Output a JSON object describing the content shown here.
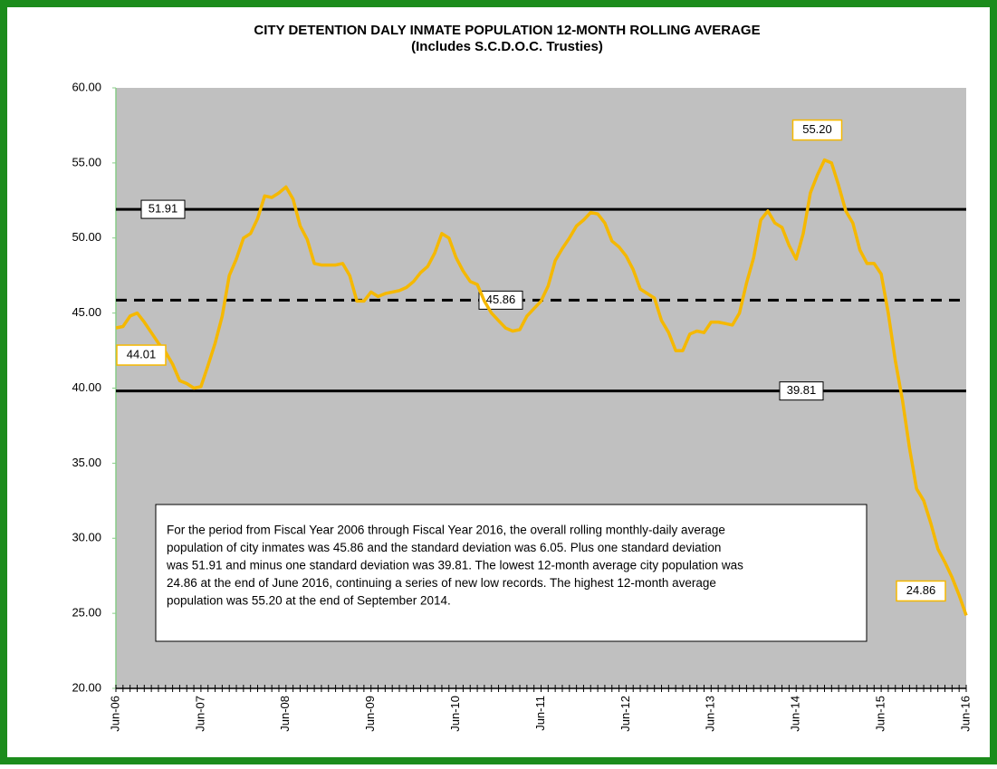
{
  "chart_data": {
    "type": "line",
    "title": [
      "CITY DETENTION DALY INMATE POPULATION 12-MONTH ROLLING  AVERAGE",
      "(Includes S.C.D.O.C. Trusties)"
    ],
    "categories": [
      "Jun-06",
      null,
      null,
      null,
      null,
      null,
      null,
      null,
      null,
      null,
      null,
      null,
      "Jun-07",
      null,
      null,
      null,
      null,
      null,
      null,
      null,
      null,
      null,
      null,
      null,
      "Jun-08",
      null,
      null,
      null,
      null,
      null,
      null,
      null,
      null,
      null,
      null,
      null,
      "Jun-09",
      null,
      null,
      null,
      null,
      null,
      null,
      null,
      null,
      null,
      null,
      null,
      "Jun-10",
      null,
      null,
      null,
      null,
      null,
      null,
      null,
      null,
      null,
      null,
      null,
      "Jun-11",
      null,
      null,
      null,
      null,
      null,
      null,
      null,
      null,
      null,
      null,
      null,
      "Jun-12",
      null,
      null,
      null,
      null,
      null,
      null,
      null,
      null,
      null,
      null,
      null,
      "Jun-13",
      null,
      null,
      null,
      null,
      null,
      null,
      null,
      null,
      null,
      null,
      null,
      "Jun-14",
      null,
      null,
      null,
      null,
      null,
      null,
      null,
      null,
      null,
      null,
      null,
      "Jun-15",
      null,
      null,
      null,
      null,
      null,
      null,
      null,
      null,
      null,
      null,
      null,
      "Jun-16"
    ],
    "values": [
      44.01,
      44.1,
      44.8,
      45.0,
      44.4,
      43.7,
      43.0,
      42.4,
      41.6,
      40.5,
      40.3,
      40.0,
      40.1,
      41.5,
      43.0,
      44.8,
      47.5,
      48.6,
      50.0,
      50.3,
      51.3,
      52.8,
      52.7,
      53.0,
      53.4,
      52.6,
      50.8,
      49.9,
      48.3,
      48.2,
      48.2,
      48.2,
      48.3,
      47.5,
      45.8,
      45.8,
      46.4,
      46.1,
      46.3,
      46.4,
      46.5,
      46.7,
      47.1,
      47.7,
      48.1,
      49.0,
      50.3,
      50.0,
      48.7,
      47.8,
      47.1,
      46.9,
      45.8,
      45.0,
      44.5,
      44.0,
      43.8,
      43.9,
      44.8,
      45.3,
      45.8,
      46.8,
      48.5,
      49.3,
      50.0,
      50.8,
      51.2,
      51.7,
      51.6,
      51.0,
      49.8,
      49.4,
      48.8,
      47.9,
      46.6,
      46.3,
      46.0,
      44.5,
      43.7,
      42.5,
      42.5,
      43.6,
      43.8,
      43.7,
      44.4,
      44.4,
      44.3,
      44.2,
      45.0,
      47.0,
      48.7,
      51.2,
      51.8,
      51.0,
      50.7,
      49.5,
      48.6,
      50.3,
      53.0,
      54.2,
      55.2,
      55.0,
      53.5,
      51.8,
      51.0,
      49.2,
      48.3,
      48.3,
      47.6,
      45.0,
      41.8,
      39.2,
      36.0,
      33.3,
      32.5,
      31.0,
      29.3,
      28.4,
      27.4,
      26.2,
      24.86
    ],
    "value_labels": [
      "44.01",
      null,
      null,
      null,
      null,
      null,
      null,
      null,
      null,
      null,
      null,
      null,
      null,
      null,
      null,
      null,
      null,
      null,
      null,
      null,
      null,
      null,
      null,
      null,
      null,
      null,
      null,
      null,
      null,
      null,
      null,
      null,
      null,
      null,
      null,
      null,
      null,
      null,
      null,
      null,
      null,
      null,
      null,
      null,
      null,
      null,
      null,
      null,
      null,
      null,
      null,
      null,
      null,
      null,
      null,
      null,
      null,
      null,
      null,
      null,
      null,
      null,
      null,
      null,
      null,
      null,
      null,
      null,
      null,
      null,
      null,
      null,
      null,
      null,
      null,
      null,
      null,
      null,
      null,
      null,
      null,
      null,
      null,
      null,
      null,
      null,
      null,
      null,
      null,
      null,
      null,
      null,
      null,
      null,
      null,
      null,
      null,
      null,
      null,
      null,
      "55.20",
      null,
      null,
      null,
      null,
      null,
      null,
      null,
      null,
      null,
      null,
      null,
      null,
      null,
      null,
      null,
      null,
      null,
      null,
      null,
      "24.86"
    ],
    "color": "#f5b800",
    "reference_lines": [
      {
        "value": 51.91,
        "style": "solid"
      },
      {
        "value": 45.86,
        "style": "dashed"
      },
      {
        "value": 39.81,
        "style": "solid"
      }
    ],
    "ylim": [
      20,
      60
    ],
    "yticks": [
      {
        "value": 20,
        "label": "20.00"
      },
      {
        "value": 25,
        "label": "25.00"
      },
      {
        "value": 30,
        "label": "30.00"
      },
      {
        "value": 35,
        "label": "35.00"
      },
      {
        "value": 40,
        "label": "40.00"
      },
      {
        "value": 45,
        "label": "45.00"
      },
      {
        "value": 50,
        "label": "50.00"
      },
      {
        "value": 55,
        "label": "55.00"
      },
      {
        "value": 60,
        "label": "60.00"
      }
    ],
    "annotation": [
      "For the period from Fiscal Year 2006  through Fiscal Year 2016,  the overall rolling monthly-daily average",
      "population of city inmates was 45.86 and the standard deviation was 6.05.  Plus one standard deviation",
      "was 51.91 and minus one standard deviation was 39.81.  The lowest 12-month average city population was",
      "24.86 at the end of June 2016, continuing a series of new low records.  The highest 12-month average",
      "population was 55.20 at the end of September 2014."
    ]
  }
}
